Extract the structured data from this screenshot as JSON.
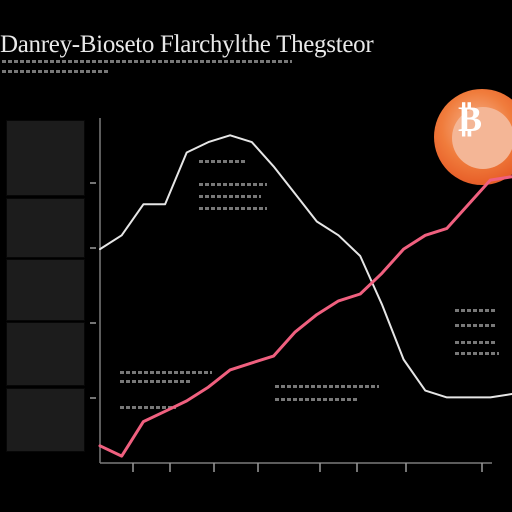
{
  "chart_data": {
    "type": "line",
    "title": "",
    "xlabel": "",
    "ylabel": "",
    "x": [
      1,
      2,
      3,
      4,
      5,
      6,
      7,
      8,
      9,
      10,
      11,
      12,
      13,
      14,
      15,
      16,
      17,
      18,
      19,
      20
    ],
    "xlim": [
      1,
      20
    ],
    "ylim": [
      0,
      100
    ],
    "grid": false,
    "series": [
      {
        "values": [
          62,
          66,
          75,
          75,
          90,
          93,
          95,
          93,
          86,
          78,
          70,
          66,
          60,
          46,
          30,
          21,
          19,
          19,
          19,
          20
        ],
        "color": "#e6e6e6"
      },
      {
        "values": [
          5,
          2,
          12,
          15,
          18,
          22,
          27,
          29,
          31,
          38,
          43,
          47,
          49,
          55,
          62,
          66,
          68,
          75,
          82,
          83
        ],
        "color": "#f0607f"
      }
    ]
  },
  "title_text": "Danrey-Bioseto Flarchylthe Thegsteor",
  "icons": {
    "logo": "bitcoin-logo-icon"
  }
}
